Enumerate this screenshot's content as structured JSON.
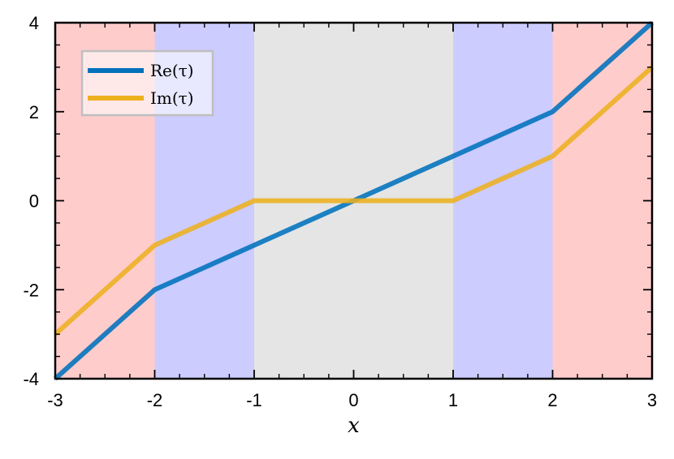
{
  "chart_data": {
    "type": "line",
    "xlabel": "x",
    "ylabel": "",
    "xlim": [
      -3,
      3
    ],
    "ylim": [
      -4,
      4
    ],
    "xticks": [
      "-3",
      "-2",
      "-1",
      "0",
      "1",
      "2",
      "3"
    ],
    "yticks": [
      "-4",
      "-2",
      "0",
      "2",
      "4"
    ],
    "x_minor_step": 0.25,
    "y_minor_step": 0.5,
    "grid": false,
    "legend_position": "top-left",
    "regions": [
      {
        "from": -3,
        "to": -2,
        "color": "#ffcccc"
      },
      {
        "from": -2,
        "to": -1,
        "color": "#ccccff"
      },
      {
        "from": -1,
        "to": 1,
        "color": "#e5e5e5"
      },
      {
        "from": 1,
        "to": 2,
        "color": "#ccccff"
      },
      {
        "from": 2,
        "to": 3,
        "color": "#ffcccc"
      }
    ],
    "series": [
      {
        "name": "Re(τ)",
        "legend_label": "Re(τ)",
        "color": "#0072bd",
        "x": [
          -3,
          -2,
          -1,
          0,
          1,
          2,
          3
        ],
        "y": [
          -4,
          -2,
          -1,
          0,
          1,
          2,
          4
        ]
      },
      {
        "name": "Im(τ)",
        "legend_label": "Im(τ)",
        "color": "#edb120",
        "x": [
          -3,
          -2,
          -1,
          0,
          1,
          2,
          3
        ],
        "y": [
          -3,
          -1,
          0,
          0,
          0,
          1,
          3
        ]
      }
    ]
  }
}
